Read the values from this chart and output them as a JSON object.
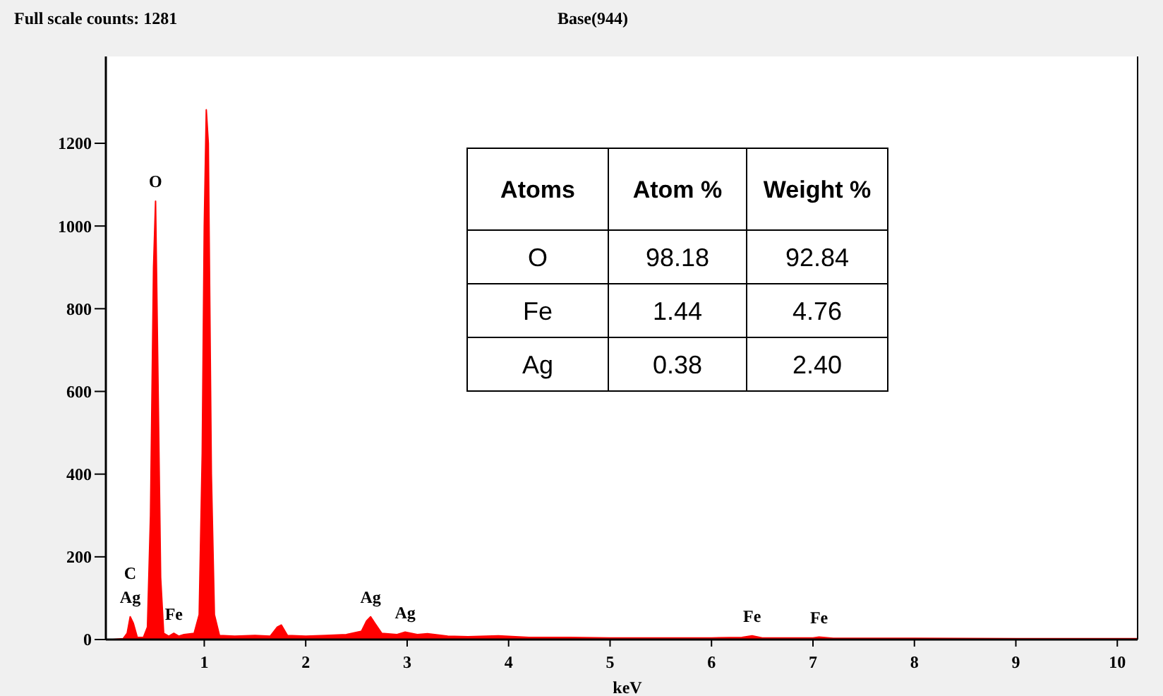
{
  "chart_data": {
    "type": "area",
    "title": "Full scale counts: 1281",
    "subtitle": "Base(944)",
    "xlabel": "keV",
    "x": [
      0.1,
      0.2,
      0.24,
      0.27,
      0.3,
      0.34,
      0.4,
      0.44,
      0.47,
      0.5,
      0.52,
      0.54,
      0.57,
      0.6,
      0.65,
      0.7,
      0.75,
      0.8,
      0.9,
      0.95,
      0.98,
      1.0,
      1.02,
      1.04,
      1.07,
      1.1,
      1.15,
      1.3,
      1.5,
      1.65,
      1.72,
      1.76,
      1.82,
      2.0,
      2.2,
      2.4,
      2.55,
      2.6,
      2.64,
      2.68,
      2.75,
      2.9,
      2.98,
      3.1,
      3.2,
      3.4,
      3.6,
      3.9,
      4.2,
      4.6,
      5.0,
      5.5,
      6.0,
      6.3,
      6.4,
      6.5,
      7.0,
      7.06,
      7.2,
      8.0,
      9.0,
      10.2
    ],
    "series": [
      {
        "color": "#ff0000",
        "values": [
          0,
          2,
          15,
          55,
          40,
          5,
          5,
          30,
          300,
          900,
          1060,
          700,
          150,
          15,
          8,
          15,
          8,
          12,
          15,
          60,
          450,
          1000,
          1281,
          1200,
          400,
          60,
          10,
          8,
          10,
          8,
          30,
          35,
          10,
          8,
          10,
          12,
          20,
          45,
          55,
          40,
          15,
          12,
          18,
          12,
          14,
          8,
          7,
          9,
          5,
          5,
          4,
          4,
          4,
          5,
          9,
          4,
          4,
          6,
          3,
          3,
          2,
          2
        ]
      }
    ],
    "xlim": [
      0.03,
      10.2
    ],
    "ylim": [
      0,
      1410
    ],
    "xticks": [
      1,
      2,
      3,
      4,
      5,
      6,
      7,
      8,
      9,
      10
    ],
    "yticks": [
      0,
      200,
      400,
      600,
      800,
      1000,
      1200
    ],
    "grid": false,
    "annotations": [
      "Atoms",
      "Atom %",
      "Weight %",
      "O",
      "98.18",
      "92.84",
      "Fe",
      "1.44",
      "4.76",
      "Ag",
      "0.38",
      "2.40",
      {
        "text": "O",
        "x": 0.52,
        "y": 1060
      },
      {
        "text": "Ag",
        "x": 0.27,
        "y": 55
      },
      {
        "text": "C",
        "x": 0.27,
        "y": 55
      },
      {
        "text": "Fe",
        "x": 0.7,
        "y": 15
      },
      {
        "text": "Ag",
        "x": 2.64,
        "y": 55
      },
      {
        "text": "Ag",
        "x": 2.98,
        "y": 18
      },
      {
        "text": "Fe",
        "x": 6.4,
        "y": 9
      },
      {
        "text": "Fe",
        "x": 7.06,
        "y": 6
      }
    ]
  }
}
